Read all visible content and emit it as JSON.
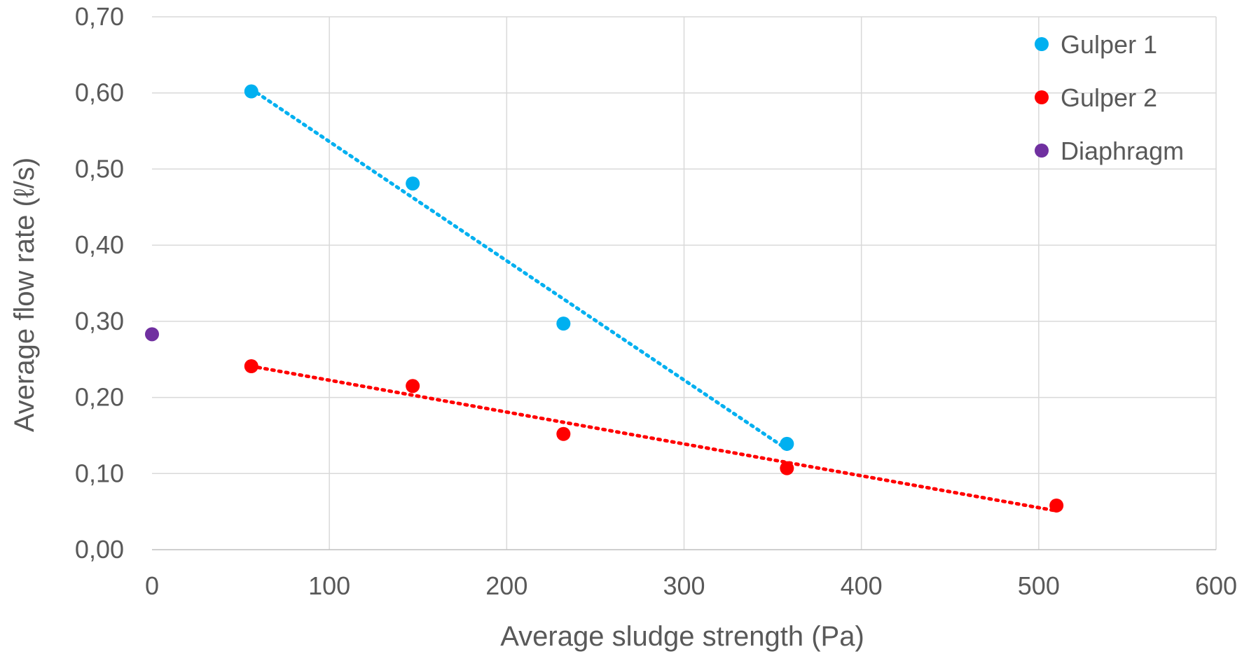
{
  "chart_data": {
    "type": "scatter",
    "xlabel": "Average sludge strength (Pa)",
    "ylabel": "Average flow rate (ℓ/s)",
    "xlim": [
      0,
      600
    ],
    "ylim": [
      0,
      0.7
    ],
    "x_ticks": [
      "0",
      "100",
      "200",
      "300",
      "400",
      "500",
      "600"
    ],
    "y_ticks": [
      "0,00",
      "0,10",
      "0,20",
      "0,30",
      "0,40",
      "0,50",
      "0,60",
      "0,70"
    ],
    "grid": true,
    "legend": "top-right",
    "series": [
      {
        "name": "Gulper 1",
        "color": "#00b0f0",
        "points": [
          [
            56,
            0.602
          ],
          [
            147,
            0.481
          ],
          [
            232,
            0.297
          ],
          [
            358,
            0.139
          ]
        ],
        "trendline": {
          "style": "dotted",
          "from": [
            56,
            0.605
          ],
          "to": [
            358,
            0.132
          ]
        }
      },
      {
        "name": "Gulper 2",
        "color": "#ff0000",
        "points": [
          [
            56,
            0.241
          ],
          [
            147,
            0.215
          ],
          [
            232,
            0.152
          ],
          [
            358,
            0.107
          ],
          [
            510,
            0.058
          ]
        ],
        "trendline": {
          "style": "dotted",
          "from": [
            56,
            0.241
          ],
          "to": [
            510,
            0.051
          ]
        }
      },
      {
        "name": "Diaphragm",
        "color": "#7030a0",
        "points": [
          [
            0,
            0.283
          ]
        ]
      }
    ]
  }
}
